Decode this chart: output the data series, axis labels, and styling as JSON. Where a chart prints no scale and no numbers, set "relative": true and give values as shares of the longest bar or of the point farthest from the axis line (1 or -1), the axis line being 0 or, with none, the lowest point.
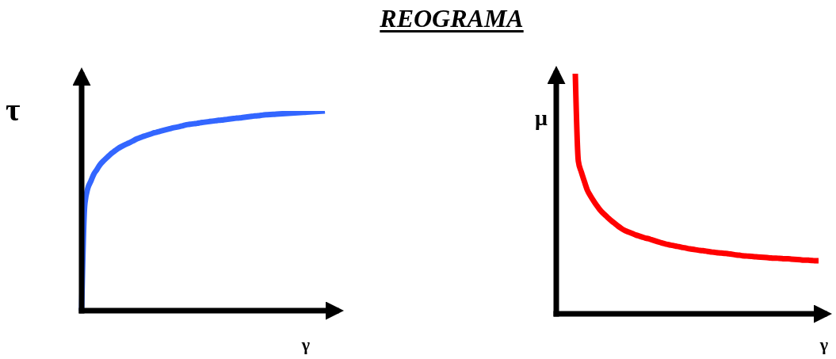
{
  "chart_data": [
    {
      "type": "line",
      "xlabel": "γ",
      "ylabel": "τ",
      "relative": true,
      "categories": [
        null,
        null,
        null,
        null,
        null,
        null,
        null,
        null,
        null,
        null,
        null,
        null,
        null,
        null,
        null,
        null,
        null,
        null,
        null,
        null,
        null,
        null,
        null,
        null,
        null,
        null,
        null,
        null,
        null,
        null,
        null,
        null,
        null,
        null,
        null,
        null,
        null,
        null,
        null,
        null,
        null,
        null,
        null,
        null,
        null,
        null,
        null,
        null,
        null,
        null,
        null,
        null,
        null,
        null,
        null,
        null,
        null,
        null,
        null,
        null,
        null,
        null,
        null,
        null,
        null,
        null,
        null,
        null,
        null,
        null,
        null,
        null,
        null,
        null,
        null,
        null,
        null,
        null,
        null,
        null,
        null
      ],
      "color": "#3366ff",
      "values": [
        0,
        0.524,
        0.611,
        0.647,
        0.683,
        0.706,
        0.73,
        0.747,
        0.762,
        0.776,
        0.79,
        0.801,
        0.812,
        0.821,
        0.829,
        0.836,
        0.843,
        0.851,
        0.859,
        0.865,
        0.871,
        0.876,
        0.881,
        0.886,
        0.891,
        0.895,
        0.899,
        0.903,
        0.907,
        0.911,
        0.915,
        0.918,
        0.921,
        0.925,
        0.929,
        0.932,
        0.934,
        0.936,
        0.938,
        0.941,
        0.943,
        0.945,
        0.947,
        0.949,
        0.951,
        0.953,
        0.954,
        0.956,
        0.958,
        0.96,
        0.962,
        0.964,
        0.965,
        0.967,
        0.969,
        0.971,
        0.973,
        0.975,
        0.976,
        0.978,
        0.98,
        0.981,
        0.982,
        0.983,
        0.984,
        0.985,
        0.986,
        0.987,
        0.988,
        0.989,
        0.99,
        0.991,
        0.992,
        0.993,
        0.994,
        0.995,
        0.996,
        0.997,
        0.998,
        0.999,
        1
      ]
    },
    {
      "type": "line",
      "title": "REOGRAMA",
      "xlabel": "γ",
      "ylabel": "μ",
      "relative": true,
      "categories": [
        null,
        null,
        null,
        null,
        null,
        null,
        null,
        null,
        null,
        null,
        null,
        null,
        null,
        null,
        null,
        null,
        null,
        null,
        null,
        null,
        null,
        null,
        null,
        null,
        null,
        null,
        null,
        null,
        null,
        null,
        null,
        null,
        null,
        null,
        null,
        null,
        null,
        null,
        null,
        null,
        null,
        null,
        null,
        null,
        null,
        null,
        null,
        null,
        null,
        null,
        null,
        null,
        null,
        null,
        null,
        null,
        null,
        null,
        null,
        null,
        null,
        null,
        null,
        null,
        null,
        null,
        null,
        null,
        null,
        null,
        null,
        null,
        null,
        null,
        null,
        null,
        null,
        null,
        null,
        null,
        null
      ],
      "color": "#ff0000",
      "values": [
        1,
        0.636,
        0.59,
        0.551,
        0.514,
        0.491,
        0.471,
        0.452,
        0.435,
        0.421,
        0.409,
        0.397,
        0.386,
        0.376,
        0.366,
        0.357,
        0.349,
        0.343,
        0.338,
        0.333,
        0.328,
        0.324,
        0.32,
        0.316,
        0.313,
        0.309,
        0.305,
        0.301,
        0.297,
        0.293,
        0.29,
        0.287,
        0.285,
        0.282,
        0.28,
        0.277,
        0.275,
        0.272,
        0.27,
        0.268,
        0.266,
        0.264,
        0.263,
        0.261,
        0.259,
        0.257,
        0.256,
        0.254,
        0.253,
        0.252,
        0.251,
        0.249,
        0.247,
        0.245,
        0.244,
        0.242,
        0.241,
        0.24,
        0.239,
        0.238,
        0.237,
        0.236,
        0.235,
        0.234,
        0.233,
        0.232,
        0.232,
        0.231,
        0.23,
        0.229,
        0.229,
        0.228,
        0.227,
        0.226,
        0.225,
        0.224,
        0.224,
        0.223,
        0.222,
        0.221,
        0.221
      ]
    }
  ]
}
